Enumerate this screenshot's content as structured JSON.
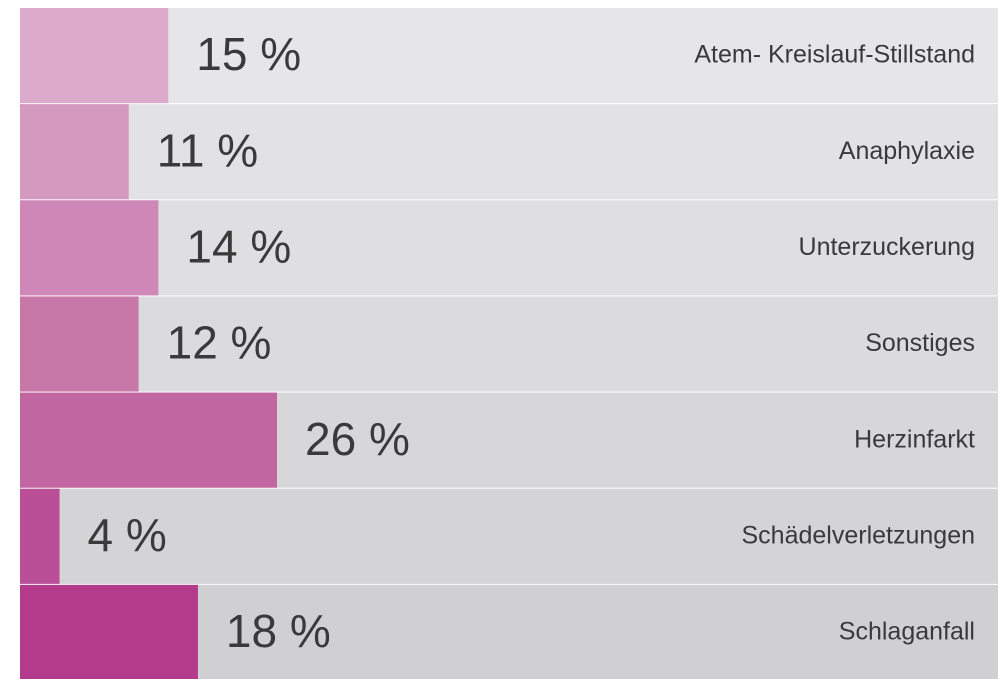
{
  "chart_data": {
    "type": "bar",
    "orientation": "horizontal",
    "categories": [
      "Atem- Kreislauf-Stillstand",
      "Anaphylaxie",
      "Unterzuckerung",
      "Sonstiges",
      "Herzinfarkt",
      "Schädelverletzungen",
      "Schlaganfall"
    ],
    "values": [
      15,
      11,
      14,
      12,
      26,
      4,
      18
    ],
    "value_labels": [
      "15 %",
      "11 %",
      "14 %",
      "12 %",
      "26 %",
      "4 %",
      "18 %"
    ],
    "colors": [
      "#dcaacb",
      "#d598bf",
      "#cf87b7",
      "#c878a8",
      "#c166a0",
      "#bb4f97",
      "#b43a8c"
    ]
  }
}
